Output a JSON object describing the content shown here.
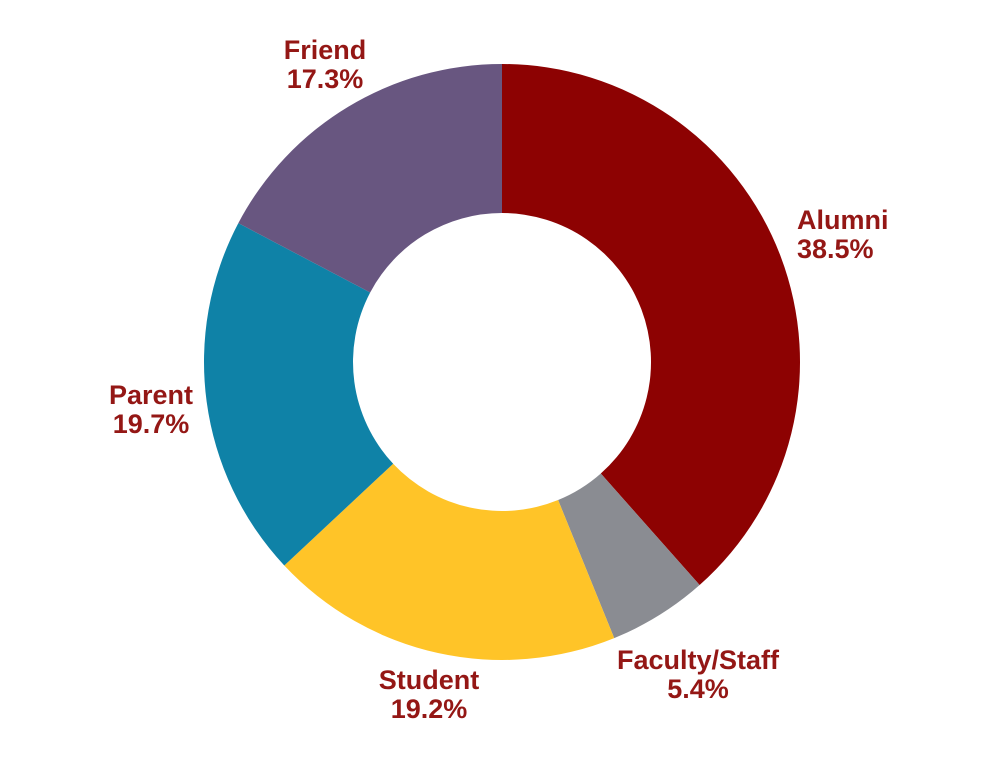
{
  "chart_data": {
    "type": "pie",
    "subtype": "donut",
    "title": "",
    "legend": "none",
    "background": "#FFFFFF",
    "label_color": "#941715",
    "start_angle_deg": 0,
    "direction": "clockwise",
    "donut_hole_ratio": 0.5,
    "slices": [
      {
        "label": "Alumni",
        "value": 38.5,
        "pct_label": "38.5%",
        "color": "#8D0202"
      },
      {
        "label": "Faculty/Staff",
        "value": 5.4,
        "pct_label": "5.4%",
        "color": "#8A8C92"
      },
      {
        "label": "Student",
        "value": 19.2,
        "pct_label": "19.2%",
        "color": "#FFC428"
      },
      {
        "label": "Parent",
        "value": 19.7,
        "pct_label": "19.7%",
        "color": "#0F82A7"
      },
      {
        "label": "Friend",
        "value": 17.3,
        "pct_label": "17.3%",
        "color": "#685680"
      }
    ]
  }
}
